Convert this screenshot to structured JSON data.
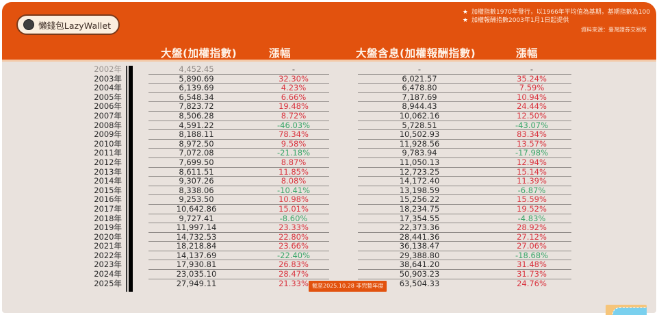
{
  "brand": {
    "label": "懶錢包LazyWallet",
    "icon": "circle-dot-icon"
  },
  "notes": [
    "加權指數1970年發行，以1966年平均值為基期，基期指數為100",
    "加權報酬指數2003年1月1日起提供"
  ],
  "source": "資料來源：臺灣證券交易所",
  "headers": {
    "taiex": "大盤(加權指數)",
    "taiex_change": "漲幅",
    "tr": "大盤含息(加權報酬指數)",
    "tr_change": "漲幅"
  },
  "badge": "截至2025.10.28 非完整年度",
  "colors": {
    "header": "#e2520e",
    "positive": "#d9343f",
    "negative": "#3aa66a",
    "background": "#e9e2dd"
  },
  "rows": [
    {
      "year": "2002年",
      "taiex": "4,452.45",
      "taiex_chg": "-",
      "tr": "-",
      "tr_chg": "-"
    },
    {
      "year": "2003年",
      "taiex": "5,890.69",
      "taiex_chg": "32.30%",
      "tr": "6,021.57",
      "tr_chg": "35.24%"
    },
    {
      "year": "2004年",
      "taiex": "6,139.69",
      "taiex_chg": "4.23%",
      "tr": "6,478.80",
      "tr_chg": "7.59%"
    },
    {
      "year": "2005年",
      "taiex": "6,548.34",
      "taiex_chg": "6.66%",
      "tr": "7,187.69",
      "tr_chg": "10.94%"
    },
    {
      "year": "2006年",
      "taiex": "7,823.72",
      "taiex_chg": "19.48%",
      "tr": "8,944.43",
      "tr_chg": "24.44%"
    },
    {
      "year": "2007年",
      "taiex": "8,506.28",
      "taiex_chg": "8.72%",
      "tr": "10,062.16",
      "tr_chg": "12.50%"
    },
    {
      "year": "2008年",
      "taiex": "4,591.22",
      "taiex_chg": "-46.03%",
      "tr": "5,728.51",
      "tr_chg": "-43.07%"
    },
    {
      "year": "2009年",
      "taiex": "8,188.11",
      "taiex_chg": "78.34%",
      "tr": "10,502.93",
      "tr_chg": "83.34%"
    },
    {
      "year": "2010年",
      "taiex": "8,972.50",
      "taiex_chg": "9.58%",
      "tr": "11,928.56",
      "tr_chg": "13.57%"
    },
    {
      "year": "2011年",
      "taiex": "7,072.08",
      "taiex_chg": "-21.18%",
      "tr": "9,783.94",
      "tr_chg": "-17.98%"
    },
    {
      "year": "2012年",
      "taiex": "7,699.50",
      "taiex_chg": "8.87%",
      "tr": "11,050.13",
      "tr_chg": "12.94%"
    },
    {
      "year": "2013年",
      "taiex": "8,611.51",
      "taiex_chg": "11.85%",
      "tr": "12,723.25",
      "tr_chg": "15.14%"
    },
    {
      "year": "2014年",
      "taiex": "9,307.26",
      "taiex_chg": "8.08%",
      "tr": "14,172.40",
      "tr_chg": "11.39%"
    },
    {
      "year": "2015年",
      "taiex": "8,338.06",
      "taiex_chg": "-10.41%",
      "tr": "13,198.59",
      "tr_chg": "-6.87%"
    },
    {
      "year": "2016年",
      "taiex": "9,253.50",
      "taiex_chg": "10.98%",
      "tr": "15,256.22",
      "tr_chg": "15.59%"
    },
    {
      "year": "2017年",
      "taiex": "10,642.86",
      "taiex_chg": "15.01%",
      "tr": "18,234.75",
      "tr_chg": "19.52%"
    },
    {
      "year": "2018年",
      "taiex": "9,727.41",
      "taiex_chg": "-8.60%",
      "tr": "17,354.55",
      "tr_chg": "-4.83%"
    },
    {
      "year": "2019年",
      "taiex": "11,997.14",
      "taiex_chg": "23.33%",
      "tr": "22,373.36",
      "tr_chg": "28.92%"
    },
    {
      "year": "2020年",
      "taiex": "14,732.53",
      "taiex_chg": "22.80%",
      "tr": "28,441.36",
      "tr_chg": "27.12%"
    },
    {
      "year": "2021年",
      "taiex": "18,218.84",
      "taiex_chg": "23.66%",
      "tr": "36,138.47",
      "tr_chg": "27.06%"
    },
    {
      "year": "2022年",
      "taiex": "14,137.69",
      "taiex_chg": "-22.40%",
      "tr": "29,388.80",
      "tr_chg": "-18.68%"
    },
    {
      "year": "2023年",
      "taiex": "17,930.81",
      "taiex_chg": "26.83%",
      "tr": "38,641.20",
      "tr_chg": "31.48%"
    },
    {
      "year": "2024年",
      "taiex": "23,035.10",
      "taiex_chg": "28.47%",
      "tr": "50,903.23",
      "tr_chg": "31.73%"
    },
    {
      "year": "2025年",
      "taiex": "27,949.11",
      "taiex_chg": "21.33%",
      "tr": "63,504.33",
      "tr_chg": "24.76%"
    }
  ]
}
